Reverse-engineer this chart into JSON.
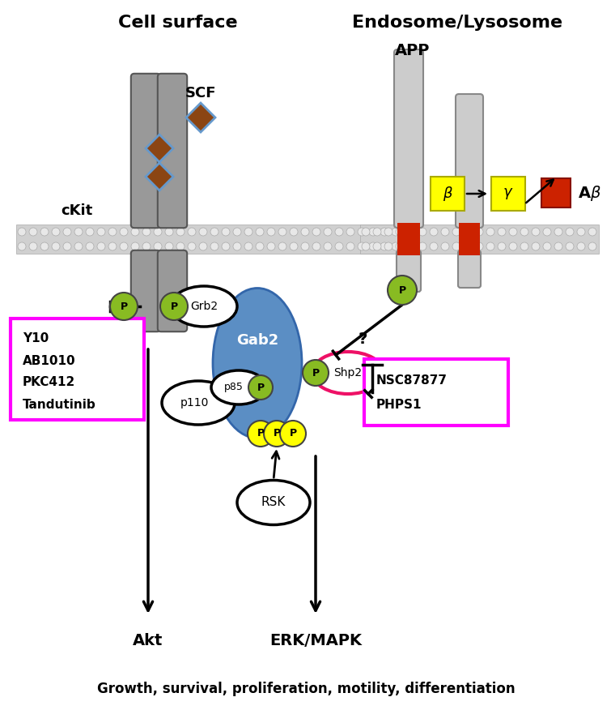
{
  "bg_color": "#ffffff",
  "ckit_color": "#999999",
  "scf_color": "#8B4513",
  "scf_outline_color": "#6699cc",
  "gab2_color": "#5b8ec4",
  "shp2_outline_color": "#ee1166",
  "p_green_color": "#88bb22",
  "p_yellow_color": "#ffff00",
  "app_color": "#cccccc",
  "app_red_color": "#cc2200",
  "beta_box_color": "#ffff00",
  "gamma_box_color": "#ffff00",
  "abeta_color": "#cc2200",
  "y10_box_color": "#ff00ff",
  "nsc_box_color": "#ff00ff",
  "mem_color": "#d0d0d0",
  "mem_circle_color": "#e8e8e8",
  "text_color": "#000000",
  "cell_surface_title": "Cell surface",
  "endosome_title": "Endosome/Lysosome",
  "app_label": "APP",
  "ckit_label": "cKit",
  "scf_label": "SCF",
  "gab2_label": "Gab2",
  "grb2_label": "Grb2",
  "shp2_label": "Shp2",
  "p110_label": "p110",
  "p85_label": "p85",
  "rsk_label": "RSK",
  "akt_label": "Akt",
  "erk_label": "ERK/MAPK",
  "bottom_text": "Growth, survival, proliferation, motility, differentiation",
  "y10_lines": [
    "Y10",
    "AB1010",
    "PKC412",
    "Tandutinib"
  ],
  "nsc_lines": [
    "NSC87877",
    "PHPS1"
  ]
}
